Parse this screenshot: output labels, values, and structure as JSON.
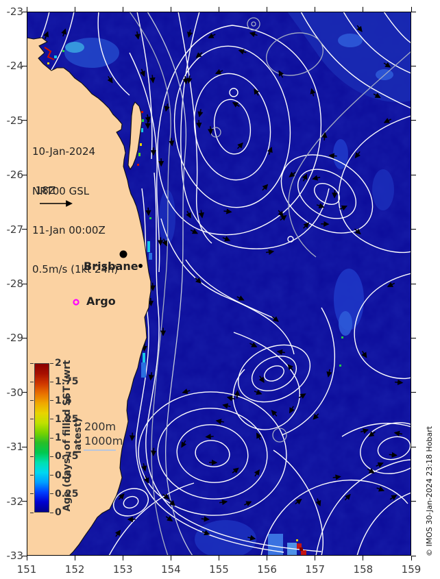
{
  "annotations": {
    "obs_time_line1": "10-Jan-2024",
    "obs_time_line2": " 18Z",
    "model_line1": "NRT00 GSL",
    "model_line2": "11-Jan 00:00Z",
    "model_line3": "0.5m/s (1kt 24h)",
    "brisbane_label": "Brisbane",
    "argo_label": "Argo"
  },
  "depth_legend": {
    "d200": "200m",
    "d1000": "1000m"
  },
  "colorbar": {
    "label": "Age (days) of filled SST (wrt latest)",
    "ticks": [
      "2",
      "1.75",
      "1.5",
      "1.25",
      "1",
      "0.75",
      "0.5",
      "0.25",
      "0"
    ],
    "gradient_bottom_to_top": [
      "#00008b",
      "#0000d0",
      "#0040ff",
      "#00a0ff",
      "#00d8f0",
      "#00e0b0",
      "#00c850",
      "#28be28",
      "#78d200",
      "#c0e000",
      "#e8d400",
      "#f0a800",
      "#e87000",
      "#d03800",
      "#a81000",
      "#8b0000"
    ]
  },
  "axes": {
    "x_ticks": [
      "151",
      "152",
      "153",
      "154",
      "155",
      "156",
      "157",
      "158",
      "159"
    ],
    "y_ticks": [
      "-23",
      "-24",
      "-25",
      "-26",
      "-27",
      "-28",
      "-29",
      "-30",
      "-31",
      "-32",
      "-33"
    ]
  },
  "credit": "© IMOS 30-Jan-2024 23:18 Hobart",
  "colors": {
    "ocean": "#0c0c9a",
    "land": "#fbd2a2",
    "streamline": "#ffffff",
    "bathymetry": "#a7afc4",
    "argo_marker": "#ff00ff",
    "arrow": "#000000"
  }
}
